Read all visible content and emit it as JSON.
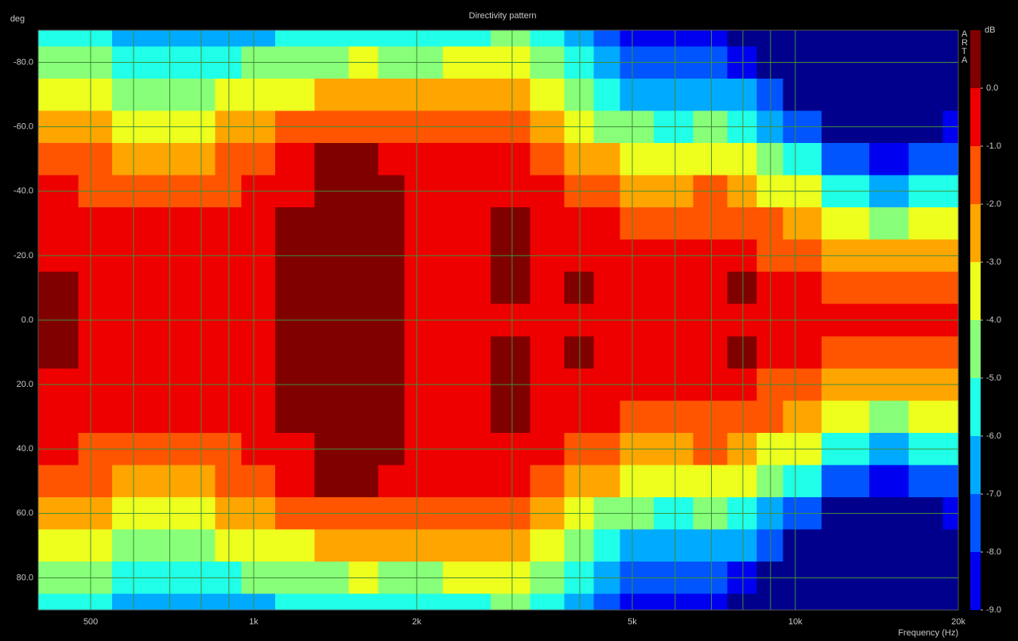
{
  "chart_data": {
    "type": "contour",
    "title": "Directivity pattern",
    "xlabel": "Frequency (Hz)",
    "ylabel": "deg",
    "watermark": "ARTA",
    "xscale": "log",
    "xlim": [
      400,
      20000
    ],
    "ylim": [
      -90,
      90
    ],
    "xticks": [
      500,
      {
        "value": 1000,
        "label": "1k"
      },
      {
        "value": 2000,
        "label": "2k"
      },
      {
        "value": 5000,
        "label": "5k"
      },
      {
        "value": 10000,
        "label": "10k"
      },
      {
        "value": 20000,
        "label": "20k"
      }
    ],
    "xgrid": [
      500,
      600,
      700,
      800,
      900,
      1000,
      2000,
      3000,
      4000,
      5000,
      6000,
      7000,
      8000,
      9000,
      10000,
      20000
    ],
    "yticks": [
      {
        "value": -80,
        "label": "-80.0"
      },
      {
        "value": -60,
        "label": "-60.0"
      },
      {
        "value": -40,
        "label": "-40.0"
      },
      {
        "value": -20,
        "label": "-20.0"
      },
      {
        "value": 0,
        "label": "0.0"
      },
      {
        "value": 20,
        "label": "20.0"
      },
      {
        "value": 40,
        "label": "40.0"
      },
      {
        "value": 60,
        "label": "60.0"
      },
      {
        "value": 80,
        "label": "80.0"
      }
    ],
    "grid": true,
    "grid_color": "#3f8f3a",
    "x": [
      400,
      450,
      500,
      600,
      700,
      800,
      900,
      1000,
      1200,
      1400,
      1600,
      1800,
      2000,
      2500,
      3000,
      3500,
      4000,
      4500,
      5000,
      6000,
      7000,
      8000,
      9000,
      10000,
      12500,
      15000,
      17500,
      20000
    ],
    "y": [
      -90,
      -80,
      -70,
      -60,
      -50,
      -40,
      -30,
      -20,
      -10,
      0,
      10,
      20,
      30,
      40,
      50,
      60,
      70,
      80,
      90
    ],
    "z": [
      [
        -5.5,
        -4.5,
        -3.5,
        -2.5,
        -1.5,
        -0.9,
        -0.6,
        -0.3,
        0.2,
        0.3,
        0.2,
        -0.3,
        -0.6,
        -0.9,
        -1.5,
        -2.5,
        -3.5,
        -4.5,
        -5.5
      ],
      [
        -5.7,
        -4.7,
        -3.6,
        -2.6,
        -1.6,
        -0.9,
        -0.6,
        -0.3,
        0.1,
        0.2,
        0.1,
        -0.3,
        -0.6,
        -0.9,
        -1.6,
        -2.6,
        -3.6,
        -4.7,
        -5.7
      ],
      [
        -5.9,
        -4.9,
        -3.8,
        -2.8,
        -1.8,
        -1.1,
        -0.6,
        -0.4,
        -0.3,
        -0.2,
        -0.3,
        -0.4,
        -0.6,
        -1.1,
        -1.8,
        -2.8,
        -3.8,
        -4.9,
        -5.9
      ],
      [
        -6.1,
        -5.1,
        -4.1,
        -3.1,
        -2.1,
        -1.3,
        -0.6,
        -0.4,
        -0.3,
        -0.3,
        -0.3,
        -0.4,
        -0.6,
        -1.3,
        -2.1,
        -3.1,
        -4.1,
        -5.1,
        -6.1
      ],
      [
        -6.3,
        -5.3,
        -4.2,
        -3.2,
        -2.2,
        -1.3,
        -0.6,
        -0.4,
        -0.3,
        -0.3,
        -0.3,
        -0.4,
        -0.6,
        -1.3,
        -2.2,
        -3.2,
        -4.2,
        -5.3,
        -6.3
      ],
      [
        -6.4,
        -5.3,
        -4.1,
        -3.0,
        -2.0,
        -1.2,
        -0.6,
        -0.4,
        -0.3,
        -0.3,
        -0.3,
        -0.4,
        -0.6,
        -1.2,
        -2.0,
        -3.0,
        -4.1,
        -5.3,
        -6.4
      ],
      [
        -6.3,
        -5.2,
        -3.9,
        -2.7,
        -1.8,
        -1.0,
        -0.6,
        -0.4,
        -0.3,
        -0.3,
        -0.3,
        -0.4,
        -0.6,
        -1.0,
        -1.8,
        -2.7,
        -3.9,
        -5.2,
        -6.3
      ],
      [
        -6.0,
        -4.9,
        -3.6,
        -2.4,
        -1.5,
        -0.9,
        -0.5,
        -0.3,
        -0.2,
        -0.2,
        -0.2,
        -0.3,
        -0.5,
        -0.9,
        -1.5,
        -2.4,
        -3.6,
        -4.9,
        -6.0
      ],
      [
        -5.8,
        -4.5,
        -3.0,
        -1.8,
        -0.8,
        -0.1,
        0.2,
        0.3,
        0.3,
        0.3,
        0.3,
        0.3,
        0.2,
        -0.1,
        -0.8,
        -1.8,
        -3.0,
        -4.5,
        -5.8
      ],
      [
        -5.3,
        -4.1,
        -2.6,
        -1.2,
        0.1,
        0.3,
        0.4,
        0.5,
        0.5,
        0.5,
        0.5,
        0.5,
        0.4,
        0.3,
        0.1,
        -1.2,
        -2.6,
        -4.1,
        -5.3
      ],
      [
        -5.1,
        -3.9,
        -2.4,
        -1.1,
        0.1,
        0.3,
        0.4,
        0.5,
        0.5,
        0.5,
        0.5,
        0.5,
        0.4,
        0.3,
        0.1,
        -1.1,
        -2.4,
        -3.9,
        -5.1
      ],
      [
        -5.2,
        -4.0,
        -2.5,
        -1.2,
        -0.3,
        0.2,
        0.3,
        0.3,
        0.3,
        0.3,
        0.3,
        0.3,
        0.3,
        0.2,
        -0.3,
        -1.2,
        -2.5,
        -4.0,
        -5.2
      ],
      [
        -5.3,
        -4.0,
        -2.7,
        -1.5,
        -0.8,
        -0.6,
        -0.5,
        -0.4,
        -0.3,
        -0.3,
        -0.3,
        -0.4,
        -0.5,
        -0.6,
        -0.8,
        -1.5,
        -2.7,
        -4.0,
        -5.3
      ],
      [
        -5.0,
        -3.8,
        -2.5,
        -1.4,
        -0.8,
        -0.6,
        -0.5,
        -0.4,
        -0.3,
        -0.3,
        -0.3,
        -0.4,
        -0.5,
        -0.6,
        -0.8,
        -1.4,
        -2.5,
        -3.8,
        -5.0
      ],
      [
        -4.8,
        -3.6,
        -2.3,
        -1.3,
        -0.9,
        -0.5,
        0.1,
        0.2,
        0.1,
        -0.2,
        0.1,
        0.2,
        0.1,
        -0.5,
        -0.9,
        -1.3,
        -2.3,
        -3.6,
        -4.8
      ],
      [
        -5.5,
        -4.2,
        -3.0,
        -2.0,
        -1.2,
        -0.9,
        -0.7,
        -0.6,
        -0.5,
        -0.4,
        -0.5,
        -0.6,
        -0.7,
        -0.9,
        -1.2,
        -2.0,
        -3.0,
        -4.2,
        -5.5
      ],
      [
        -6.5,
        -5.5,
        -4.5,
        -3.3,
        -2.2,
        -1.2,
        -0.5,
        -0.3,
        0.1,
        -0.2,
        0.1,
        -0.3,
        -0.5,
        -1.2,
        -2.2,
        -3.3,
        -4.5,
        -5.5,
        -6.5
      ],
      [
        -7.5,
        -6.3,
        -5.3,
        -4.0,
        -2.8,
        -1.6,
        -0.9,
        -0.6,
        -0.5,
        -0.4,
        -0.5,
        -0.6,
        -0.9,
        -1.6,
        -2.8,
        -4.0,
        -5.3,
        -6.3,
        -7.5
      ],
      [
        -8.5,
        -7.3,
        -6.2,
        -4.8,
        -3.2,
        -2.0,
        -1.2,
        -0.7,
        -0.5,
        -0.5,
        -0.5,
        -0.7,
        -1.2,
        -2.0,
        -3.2,
        -4.8,
        -6.2,
        -7.3,
        -8.5
      ],
      [
        -8.8,
        -7.8,
        -6.5,
        -5.2,
        -3.8,
        -2.5,
        -1.5,
        -0.9,
        -0.6,
        -0.5,
        -0.6,
        -0.9,
        -1.5,
        -2.5,
        -3.8,
        -5.2,
        -6.5,
        -7.8,
        -8.8
      ],
      [
        -8.7,
        -7.5,
        -6.0,
        -4.5,
        -3.0,
        -1.8,
        -1.2,
        -0.7,
        -0.5,
        -0.4,
        -0.5,
        -0.7,
        -1.2,
        -1.8,
        -3.0,
        -4.5,
        -6.0,
        -7.5,
        -8.7
      ],
      [
        -9.5,
        -8.3,
        -6.8,
        -5.0,
        -3.5,
        -2.2,
        -1.2,
        -0.6,
        0.1,
        -0.2,
        0.1,
        -0.6,
        -1.2,
        -2.2,
        -3.5,
        -5.0,
        -6.8,
        -8.3,
        -9.5
      ],
      [
        -10,
        -9.3,
        -7.8,
        -6.2,
        -4.5,
        -3.0,
        -1.8,
        -1.0,
        -0.6,
        -0.5,
        -0.6,
        -1.0,
        -1.8,
        -3.0,
        -4.5,
        -6.2,
        -7.8,
        -9.3,
        -10
      ],
      [
        -10,
        -10,
        -9.2,
        -7.5,
        -5.5,
        -3.8,
        -2.3,
        -1.3,
        -0.8,
        -0.6,
        -0.8,
        -1.3,
        -2.3,
        -3.8,
        -5.5,
        -7.5,
        -9.2,
        -10,
        -10
      ],
      [
        -10,
        -10,
        -10,
        -9.2,
        -7.0,
        -5.0,
        -3.2,
        -2.0,
        -1.0,
        -0.7,
        -1.0,
        -2.0,
        -3.2,
        -5.0,
        -7.0,
        -9.2,
        -10,
        -10,
        -10
      ],
      [
        -10,
        -10,
        -10,
        -9.8,
        -8.5,
        -6.2,
        -4.0,
        -2.5,
        -1.3,
        -0.8,
        -1.3,
        -2.5,
        -4.0,
        -6.2,
        -8.5,
        -9.8,
        -10,
        -10,
        -10
      ],
      [
        -10,
        -10,
        -10,
        -9.3,
        -7.8,
        -5.5,
        -3.6,
        -2.3,
        -1.3,
        -0.8,
        -1.3,
        -2.3,
        -3.6,
        -5.5,
        -7.8,
        -9.3,
        -10,
        -10,
        -10
      ],
      [
        -10,
        -10,
        -9.6,
        -8.6,
        -7.0,
        -5.0,
        -3.3,
        -2.1,
        -1.2,
        -0.7,
        -1.2,
        -2.1,
        -3.3,
        -5.0,
        -7.0,
        -8.6,
        -9.6,
        -10,
        -10
      ]
    ],
    "colors": [
      "#800000",
      "#ee0000",
      "#ff5500",
      "#ffa500",
      "#eeff1e",
      "#88ff78",
      "#20ffe8",
      "#00aaff",
      "#0055ff",
      "#0000f0",
      "#00008c"
    ],
    "colorbar": {
      "label": "dB",
      "lim": [
        -9,
        1
      ],
      "ticks": [
        {
          "value": 0,
          "label": "0.0"
        },
        {
          "value": -1,
          "label": "-1.0"
        },
        {
          "value": -2,
          "label": "-2.0"
        },
        {
          "value": -3,
          "label": "-3.0"
        },
        {
          "value": -4,
          "label": "-4.0"
        },
        {
          "value": -5,
          "label": "-5.0"
        },
        {
          "value": -6,
          "label": "-6.0"
        },
        {
          "value": -7,
          "label": "-7.0"
        },
        {
          "value": -8,
          "label": "-8.0"
        },
        {
          "value": -9,
          "label": "-9.0"
        }
      ]
    }
  }
}
